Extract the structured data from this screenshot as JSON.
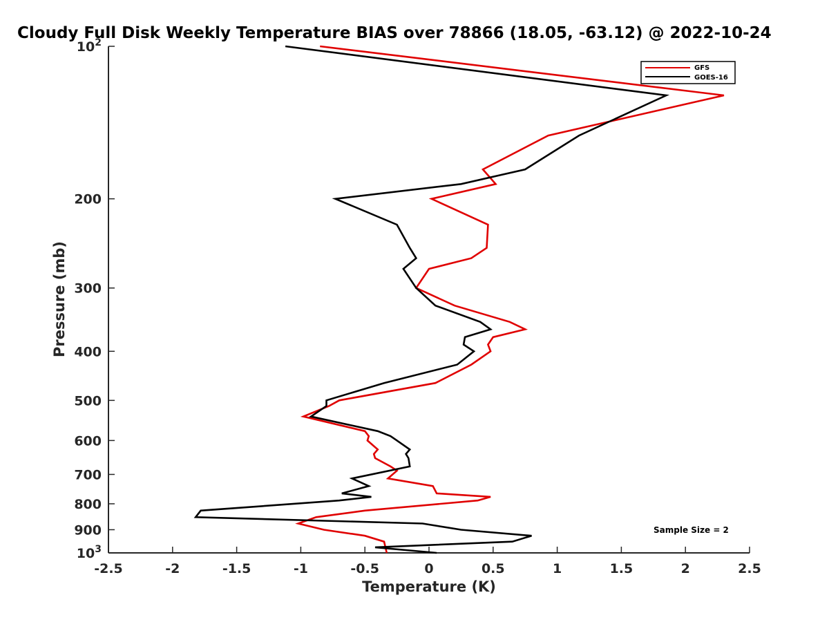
{
  "chart_data": {
    "type": "line",
    "title": "Cloudy Full Disk Weekly Temperature BIAS over 78866 (18.05, -63.12) @ 2022-10-24",
    "xlabel": "Temperature (K)",
    "ylabel": "Pressure (mb)",
    "xlim": [
      -2.5,
      2.5
    ],
    "ylim": [
      1000,
      100
    ],
    "yscale": "log",
    "x_ticks": [
      -2.5,
      -2,
      -1.5,
      -1,
      -0.5,
      0,
      0.5,
      1,
      1.5,
      2,
      2.5
    ],
    "x_tick_labels": [
      "-2.5",
      "-2",
      "-1.5",
      "-1",
      "-0.5",
      "0",
      "0.5",
      "1",
      "1.5",
      "2",
      "2.5"
    ],
    "y_ticks": [
      {
        "value": 100,
        "label": "10",
        "exp": "2"
      },
      {
        "value": 200,
        "label": "200"
      },
      {
        "value": 300,
        "label": "300"
      },
      {
        "value": 400,
        "label": "400"
      },
      {
        "value": 500,
        "label": "500"
      },
      {
        "value": 600,
        "label": "600"
      },
      {
        "value": 700,
        "label": "700"
      },
      {
        "value": 800,
        "label": "800"
      },
      {
        "value": 900,
        "label": "900"
      },
      {
        "value": 1000,
        "label": "10",
        "exp": "3"
      }
    ],
    "legend_position": "top-right",
    "annotation": "Sample Size = 2",
    "series": [
      {
        "name": "GFS",
        "color": "#e00000",
        "points": [
          [
            -0.85,
            100
          ],
          [
            2.3,
            125
          ],
          [
            0.93,
            150
          ],
          [
            0.42,
            175
          ],
          [
            0.52,
            187
          ],
          [
            0.02,
            200
          ],
          [
            0.46,
            225
          ],
          [
            0.45,
            250
          ],
          [
            0.33,
            262
          ],
          [
            0.0,
            275
          ],
          [
            -0.1,
            300
          ],
          [
            0.2,
            325
          ],
          [
            0.63,
            350
          ],
          [
            0.75,
            362
          ],
          [
            0.5,
            375
          ],
          [
            0.46,
            388
          ],
          [
            0.48,
            400
          ],
          [
            0.33,
            425
          ],
          [
            0.05,
            462
          ],
          [
            -0.7,
            500
          ],
          [
            -0.78,
            513
          ],
          [
            -0.98,
            538
          ],
          [
            -0.5,
            575
          ],
          [
            -0.47,
            588
          ],
          [
            -0.48,
            600
          ],
          [
            -0.4,
            625
          ],
          [
            -0.43,
            638
          ],
          [
            -0.42,
            650
          ],
          [
            -0.3,
            675
          ],
          [
            -0.25,
            688
          ],
          [
            -0.32,
            713
          ],
          [
            0.03,
            738
          ],
          [
            0.06,
            763
          ],
          [
            0.48,
            775
          ],
          [
            0.38,
            788
          ],
          [
            -0.5,
            825
          ],
          [
            -0.88,
            850
          ],
          [
            -1.02,
            875
          ],
          [
            -0.82,
            900
          ],
          [
            -0.5,
            925
          ],
          [
            -0.35,
            950
          ],
          [
            -0.33,
            1000
          ]
        ]
      },
      {
        "name": "GOES-16",
        "color": "#000000",
        "points": [
          [
            -1.12,
            100
          ],
          [
            1.85,
            125
          ],
          [
            1.17,
            150
          ],
          [
            0.75,
            175
          ],
          [
            0.25,
            187
          ],
          [
            -0.73,
            200
          ],
          [
            -0.25,
            225
          ],
          [
            -0.15,
            250
          ],
          [
            -0.1,
            262
          ],
          [
            -0.2,
            275
          ],
          [
            -0.1,
            300
          ],
          [
            0.05,
            325
          ],
          [
            0.4,
            350
          ],
          [
            0.48,
            362
          ],
          [
            0.28,
            375
          ],
          [
            0.27,
            388
          ],
          [
            0.35,
            400
          ],
          [
            0.22,
            425
          ],
          [
            -0.35,
            462
          ],
          [
            -0.8,
            500
          ],
          [
            -0.8,
            513
          ],
          [
            -0.92,
            538
          ],
          [
            -0.4,
            575
          ],
          [
            -0.3,
            588
          ],
          [
            -0.25,
            600
          ],
          [
            -0.15,
            625
          ],
          [
            -0.18,
            638
          ],
          [
            -0.16,
            650
          ],
          [
            -0.15,
            675
          ],
          [
            -0.6,
            713
          ],
          [
            -0.47,
            738
          ],
          [
            -0.68,
            763
          ],
          [
            -0.45,
            775
          ],
          [
            -0.7,
            788
          ],
          [
            -1.78,
            825
          ],
          [
            -1.82,
            850
          ],
          [
            -0.05,
            875
          ],
          [
            0.25,
            900
          ],
          [
            0.8,
            925
          ],
          [
            0.65,
            950
          ],
          [
            -0.42,
            975
          ],
          [
            0.06,
            1000
          ]
        ]
      }
    ]
  }
}
